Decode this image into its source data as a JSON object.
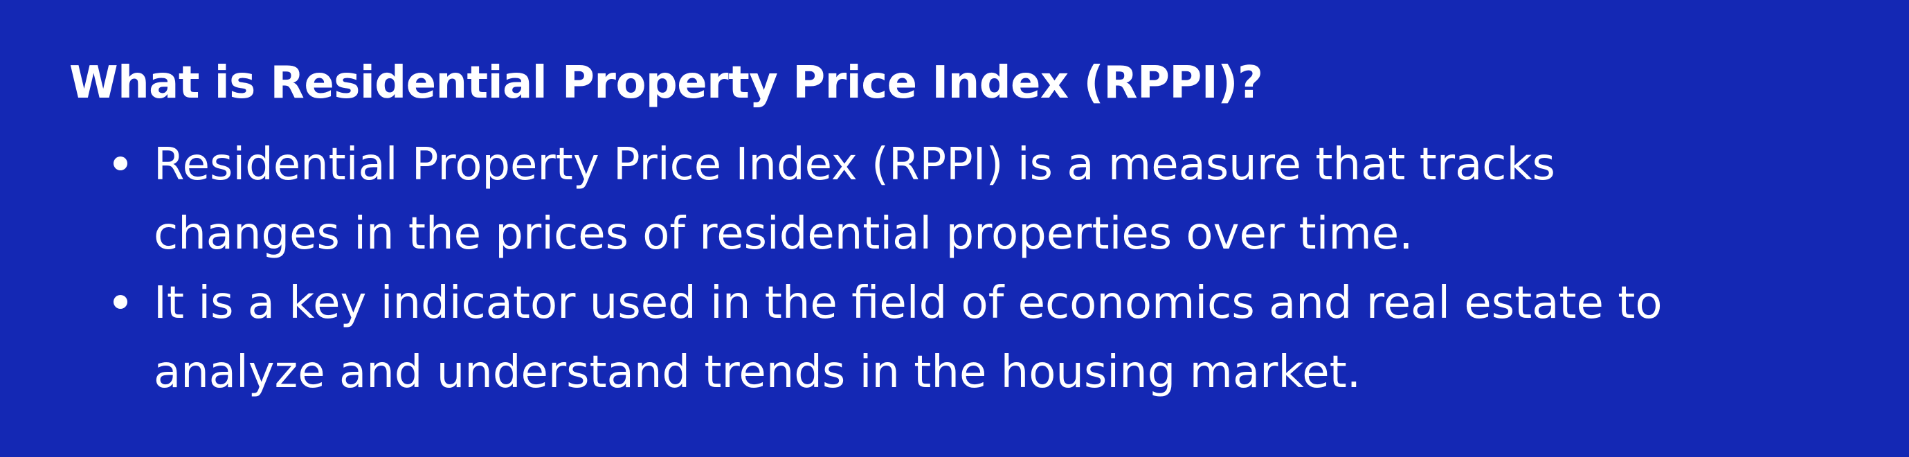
{
  "heading": "What is Residential Property Price Index (RPPI)?",
  "points": [
    {
      "lines": [
        "Residential Property Price Index (RPPI) is a measure that tracks",
        "changes in the prices of residential properties over time."
      ]
    },
    {
      "lines": [
        "It is a key indicator used in the field of economics and real estate to",
        "analyze and understand trends in the housing market."
      ]
    }
  ],
  "colors": {
    "background": "#1428b4",
    "text": "#ffffff"
  }
}
